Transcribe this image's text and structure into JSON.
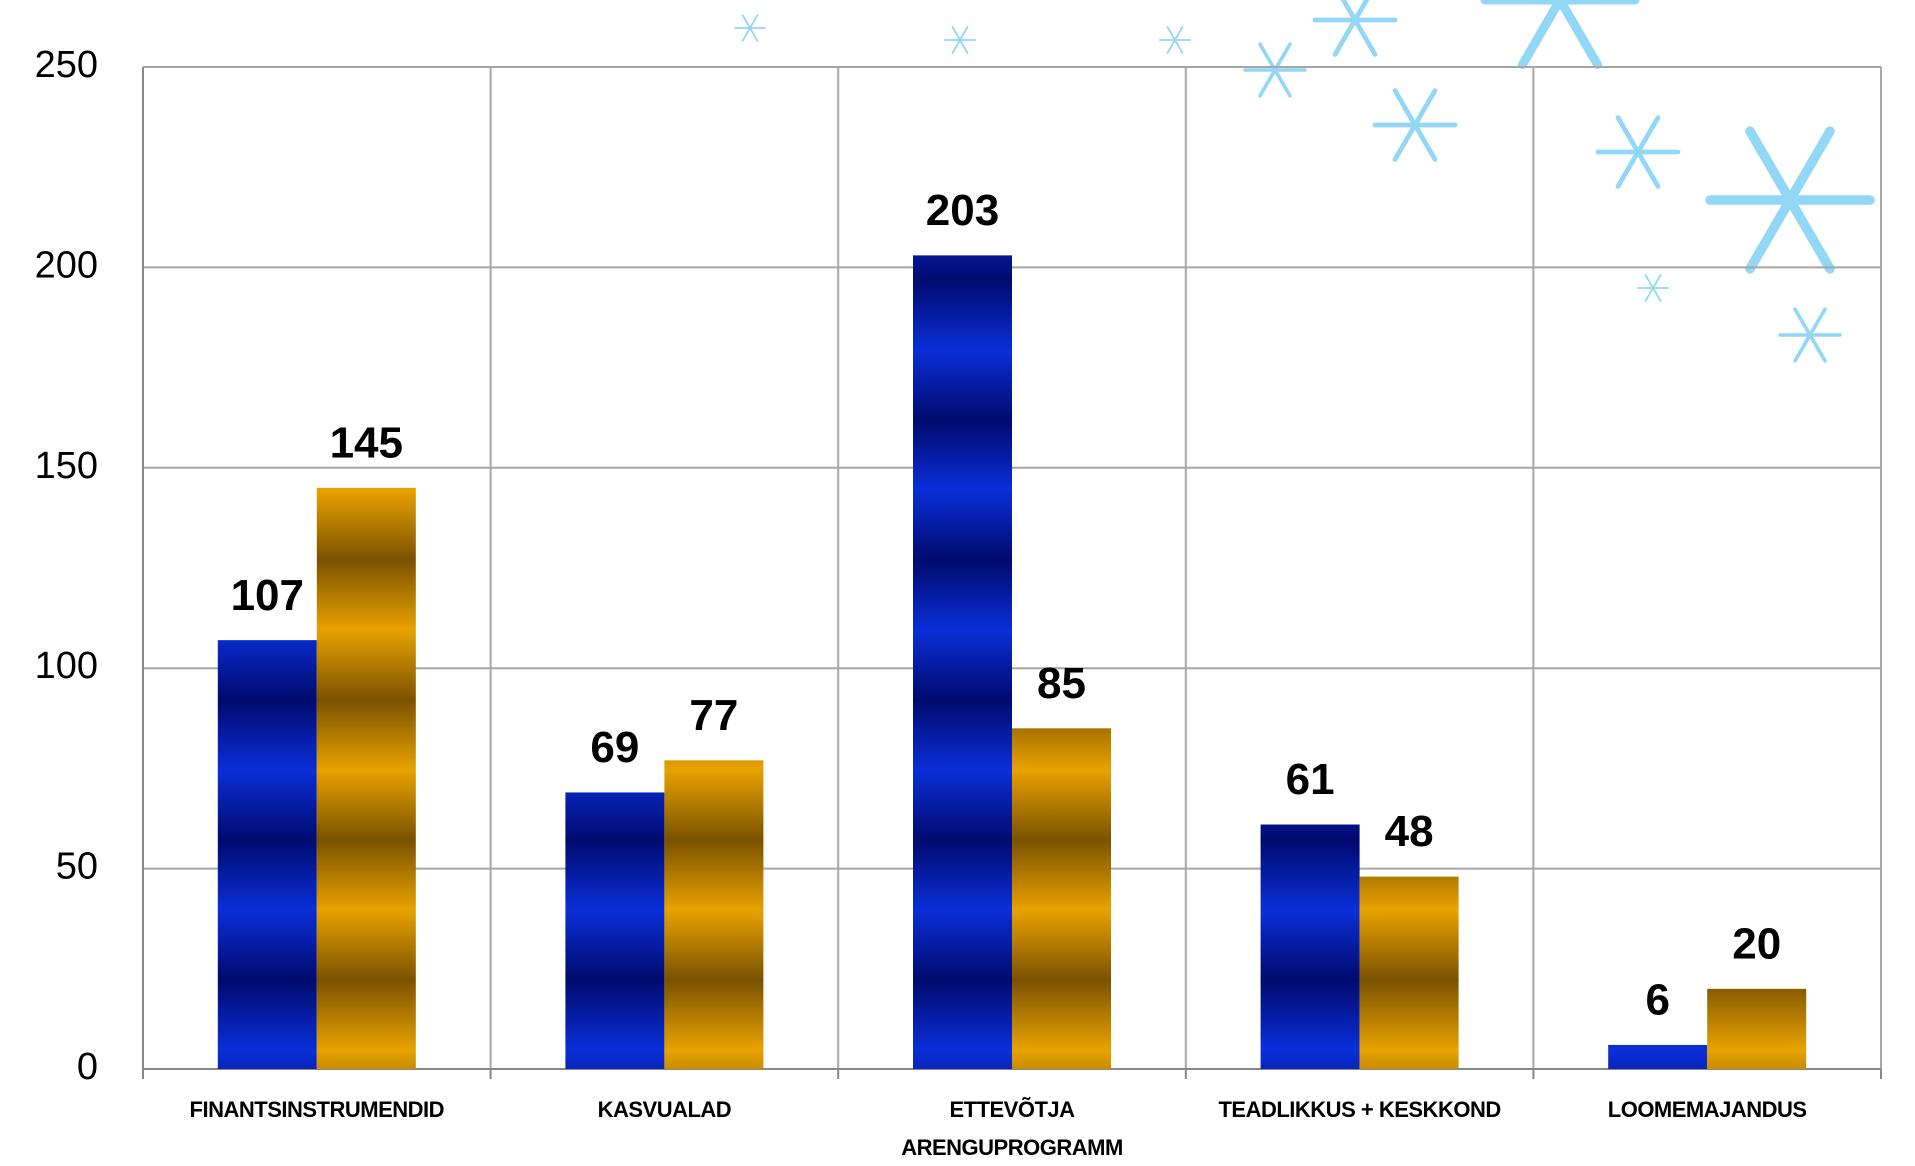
{
  "chart_data": {
    "type": "bar",
    "categories": [
      "FINANTSINSTRUMENDID",
      "KASVUALAD",
      "ETTEVÕTJA ARENGUPROGRAMM",
      "TEADLIKKUS + KESKKOND",
      "LOOMEMAJANDUS"
    ],
    "series": [
      {
        "color": "#0a2fd8",
        "values": [
          107,
          69,
          203,
          61,
          6
        ]
      },
      {
        "color": "#e8a200",
        "values": [
          145,
          77,
          85,
          48,
          20
        ]
      }
    ],
    "ylim": [
      0,
      250
    ],
    "yticks": [
      0,
      50,
      100,
      150,
      200,
      250
    ],
    "grid": true
  }
}
